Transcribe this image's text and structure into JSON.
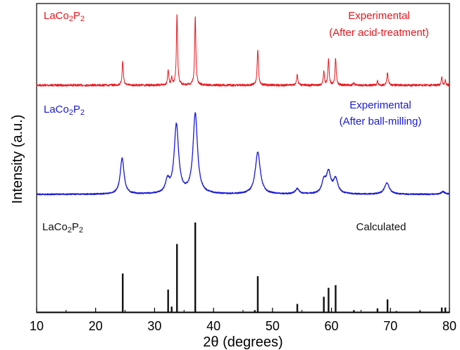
{
  "chart_data": {
    "type": "line",
    "title": "",
    "xlabel": "2θ (degrees)",
    "ylabel": "Intensity (a.u.)",
    "xlim": [
      10,
      80
    ],
    "x_ticks": [
      10,
      20,
      30,
      40,
      50,
      60,
      70,
      80
    ],
    "x_tick_labels": [
      "10",
      "20",
      "30",
      "40",
      "50",
      "60",
      "70",
      "80"
    ],
    "y_ticks_shown": false,
    "grid": false,
    "series": [
      {
        "name": "Experimental (After acid-treatment)",
        "label": "LaCo2P2",
        "label_main": "LaCo",
        "label_sub1": "2",
        "label_mid": "P",
        "label_sub2": "2",
        "annotation_lines": [
          "Experimental",
          "(After acid-treatment)"
        ],
        "color": "#e8171e",
        "peaks": [
          {
            "x": 24.6,
            "h": 0.35,
            "w": 0.12
          },
          {
            "x": 32.3,
            "h": 0.22,
            "w": 0.12
          },
          {
            "x": 32.9,
            "h": 0.1,
            "w": 0.1
          },
          {
            "x": 33.8,
            "h": 1.0,
            "w": 0.12
          },
          {
            "x": 36.9,
            "h": 0.98,
            "w": 0.12
          },
          {
            "x": 47.5,
            "h": 0.5,
            "w": 0.13
          },
          {
            "x": 54.2,
            "h": 0.16,
            "w": 0.12
          },
          {
            "x": 58.7,
            "h": 0.19,
            "w": 0.12
          },
          {
            "x": 59.5,
            "h": 0.38,
            "w": 0.12
          },
          {
            "x": 60.7,
            "h": 0.38,
            "w": 0.12
          },
          {
            "x": 63.8,
            "h": 0.04,
            "w": 0.1
          },
          {
            "x": 67.8,
            "h": 0.06,
            "w": 0.1
          },
          {
            "x": 69.5,
            "h": 0.17,
            "w": 0.13
          },
          {
            "x": 78.7,
            "h": 0.12,
            "w": 0.1
          },
          {
            "x": 79.3,
            "h": 0.08,
            "w": 0.1
          }
        ]
      },
      {
        "name": "Experimental (After ball-milling)",
        "label": "LaCo2P2",
        "label_main": "LaCo",
        "label_sub1": "2",
        "label_mid": "P",
        "label_sub2": "2",
        "annotation_lines": [
          "Experimental",
          "(After ball-milling)"
        ],
        "color": "#1a1ad6",
        "peaks": [
          {
            "x": 24.5,
            "h": 0.42,
            "w": 0.38
          },
          {
            "x": 32.2,
            "h": 0.14,
            "w": 0.4
          },
          {
            "x": 33.7,
            "h": 0.8,
            "w": 0.45
          },
          {
            "x": 36.9,
            "h": 0.93,
            "w": 0.45
          },
          {
            "x": 47.5,
            "h": 0.49,
            "w": 0.5
          },
          {
            "x": 54.2,
            "h": 0.06,
            "w": 0.4
          },
          {
            "x": 58.7,
            "h": 0.14,
            "w": 0.4
          },
          {
            "x": 59.5,
            "h": 0.24,
            "w": 0.45
          },
          {
            "x": 60.7,
            "h": 0.17,
            "w": 0.45
          },
          {
            "x": 69.4,
            "h": 0.13,
            "w": 0.5
          },
          {
            "x": 78.9,
            "h": 0.03,
            "w": 0.4
          }
        ]
      },
      {
        "name": "Calculated",
        "label": "LaCo2P2",
        "label_main": "LaCo",
        "label_sub1": "2",
        "label_mid": "P",
        "label_sub2": "2",
        "annotation_lines": [
          "Calculated"
        ],
        "color": "#111111",
        "sticks": [
          {
            "x": 24.6,
            "h": 0.43
          },
          {
            "x": 32.3,
            "h": 0.25
          },
          {
            "x": 32.9,
            "h": 0.06
          },
          {
            "x": 33.8,
            "h": 0.76
          },
          {
            "x": 36.9,
            "h": 1.0
          },
          {
            "x": 47.0,
            "h": 0.02
          },
          {
            "x": 47.5,
            "h": 0.4
          },
          {
            "x": 54.2,
            "h": 0.09
          },
          {
            "x": 58.7,
            "h": 0.17
          },
          {
            "x": 59.5,
            "h": 0.27
          },
          {
            "x": 60.7,
            "h": 0.3
          },
          {
            "x": 63.8,
            "h": 0.02
          },
          {
            "x": 67.8,
            "h": 0.04
          },
          {
            "x": 69.5,
            "h": 0.14
          },
          {
            "x": 71.0,
            "h": 0.01
          },
          {
            "x": 75.0,
            "h": 0.01
          },
          {
            "x": 78.7,
            "h": 0.05
          },
          {
            "x": 79.3,
            "h": 0.05
          }
        ]
      }
    ]
  }
}
